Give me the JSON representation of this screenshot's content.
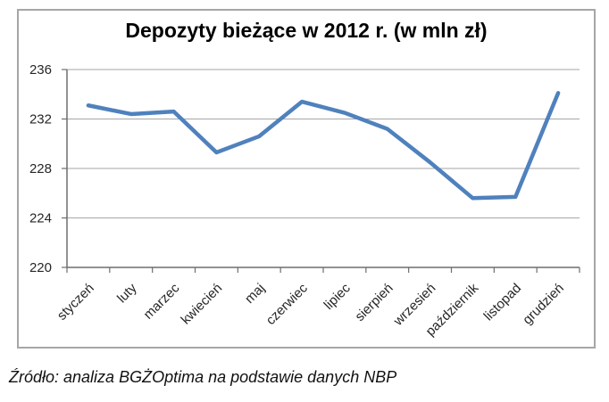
{
  "chart_data": {
    "type": "line",
    "title": "Depozyty bieżące w 2012 r. (w mln zł)",
    "categories": [
      "styczeń",
      "luty",
      "marzec",
      "kwiecień",
      "maj",
      "czerwiec",
      "lipiec",
      "sierpień",
      "wrzesień",
      "październik",
      "listopad",
      "grudzień"
    ],
    "series": [
      {
        "name": "Depozyty bieżące",
        "values": [
          233.1,
          232.4,
          232.6,
          229.3,
          230.6,
          233.4,
          232.5,
          231.2,
          228.5,
          225.6,
          225.7,
          234.1
        ]
      }
    ],
    "xlabel": "",
    "ylabel": "",
    "ylim": [
      220,
      236
    ],
    "yticks": [
      220,
      224,
      228,
      232,
      236
    ],
    "grid": true,
    "legend_position": "none",
    "x_label_rotation_deg": -45,
    "colors": {
      "line": "#4F81BD",
      "gridline": "#a6a6a6",
      "axis": "#6e6e6e",
      "frame_border": "#a6a6a6",
      "text": "#262626"
    }
  },
  "footer": {
    "source_note": "Źródło: analiza BGŻOptima na podstawie danych NBP"
  }
}
